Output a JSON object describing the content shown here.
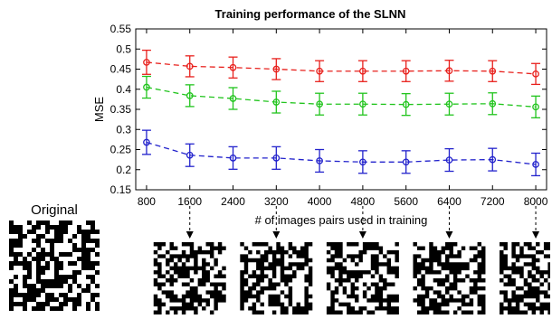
{
  "chart_data": {
    "type": "line",
    "title": "Training performance of the SLNN",
    "xlabel": "# of images pairs used in training",
    "ylabel": "MSE",
    "x": [
      800,
      1600,
      2400,
      3200,
      4000,
      4800,
      5600,
      6400,
      7200,
      8000
    ],
    "xlim": [
      600,
      8200
    ],
    "ylim": [
      0.15,
      0.55
    ],
    "yticks": [
      "0.15",
      "0.2",
      "0.25",
      "0.3",
      "0.35",
      "0.4",
      "0.45",
      "0.5",
      "0.55"
    ],
    "xticks": [
      "800",
      "1600",
      "2400",
      "3200",
      "4000",
      "4800",
      "5600",
      "6400",
      "7200",
      "8000"
    ],
    "grid": false,
    "series": [
      {
        "color": "#e8201c",
        "values": [
          0.467,
          0.457,
          0.454,
          0.45,
          0.445,
          0.445,
          0.445,
          0.446,
          0.445,
          0.438
        ],
        "err": [
          0.03,
          0.026,
          0.026,
          0.026,
          0.026,
          0.026,
          0.026,
          0.026,
          0.026,
          0.026
        ]
      },
      {
        "color": "#21c41d",
        "values": [
          0.405,
          0.384,
          0.377,
          0.368,
          0.363,
          0.363,
          0.362,
          0.363,
          0.364,
          0.356
        ],
        "err": [
          0.027,
          0.027,
          0.027,
          0.027,
          0.027,
          0.027,
          0.027,
          0.027,
          0.027,
          0.027
        ]
      },
      {
        "color": "#2222cc",
        "values": [
          0.268,
          0.236,
          0.229,
          0.229,
          0.222,
          0.219,
          0.219,
          0.224,
          0.225,
          0.213
        ],
        "err": [
          0.03,
          0.028,
          0.028,
          0.028,
          0.028,
          0.028,
          0.028,
          0.028,
          0.028,
          0.028
        ]
      }
    ],
    "annotated_x": [
      1600,
      3200,
      4800,
      6400,
      8000
    ]
  },
  "original_label": "Original"
}
